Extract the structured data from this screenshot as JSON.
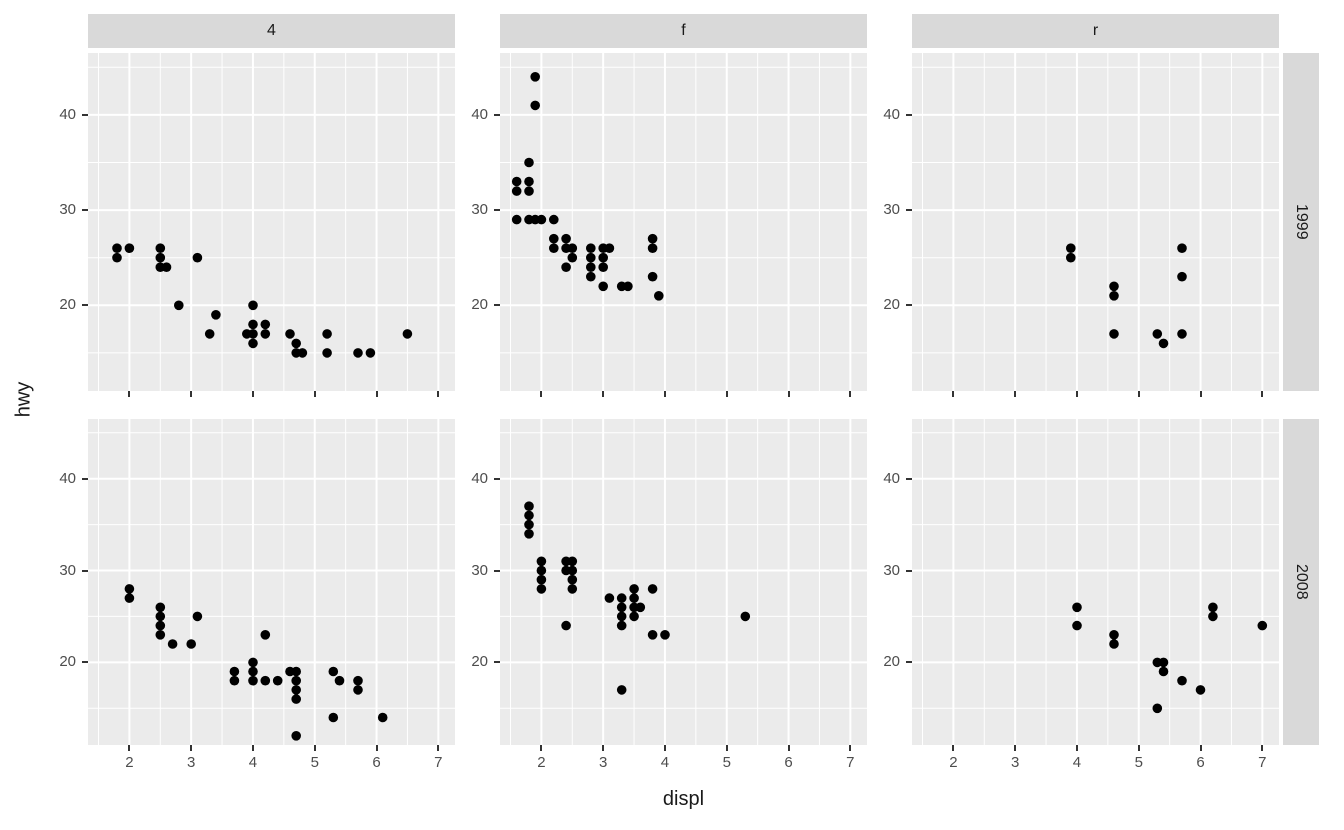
{
  "chart_data": {
    "type": "scatter",
    "title": "",
    "xlabel": "displ",
    "ylabel": "hwy",
    "x_domain": [
      1.33,
      7.27
    ],
    "y_domain": [
      11,
      46.5
    ],
    "x_ticks": [
      2,
      3,
      4,
      5,
      6,
      7
    ],
    "y_ticks": [
      20,
      30,
      40
    ],
    "x_minor": [
      1.5,
      2.5,
      3.5,
      4.5,
      5.5,
      6.5
    ],
    "y_minor": [
      15,
      25,
      35,
      45
    ],
    "grid": true,
    "legend": "none",
    "facet_cols": [
      "4",
      "f",
      "r"
    ],
    "facet_rows": [
      "1999",
      "2008"
    ],
    "colors": {
      "panel_bg": "#EBEBEB",
      "strip_bg": "#D9D9D9",
      "grid": "#FFFFFF",
      "point": "#000000",
      "tick_text": "#4D4D4D",
      "tick_mark": "#333333"
    },
    "panels": [
      {
        "col": "4",
        "row": "1999",
        "points": [
          [
            1.8,
            26
          ],
          [
            1.8,
            25
          ],
          [
            2.0,
            26
          ],
          [
            2.5,
            26
          ],
          [
            2.5,
            25
          ],
          [
            2.5,
            24
          ],
          [
            2.6,
            24
          ],
          [
            2.8,
            20
          ],
          [
            3.1,
            25
          ],
          [
            3.3,
            17
          ],
          [
            3.4,
            19
          ],
          [
            3.9,
            17
          ],
          [
            4.0,
            20
          ],
          [
            4.0,
            18
          ],
          [
            4.0,
            17
          ],
          [
            4.0,
            16
          ],
          [
            4.2,
            18
          ],
          [
            4.2,
            17
          ],
          [
            4.6,
            17
          ],
          [
            4.7,
            16
          ],
          [
            4.7,
            15
          ],
          [
            4.8,
            15
          ],
          [
            5.2,
            17
          ],
          [
            5.2,
            15
          ],
          [
            5.7,
            15
          ],
          [
            5.9,
            15
          ],
          [
            6.5,
            17
          ]
        ]
      },
      {
        "col": "f",
        "row": "1999",
        "points": [
          [
            1.9,
            44
          ],
          [
            1.9,
            41
          ],
          [
            1.8,
            35
          ],
          [
            1.6,
            33
          ],
          [
            1.8,
            33
          ],
          [
            1.6,
            32
          ],
          [
            1.8,
            32
          ],
          [
            1.6,
            29
          ],
          [
            1.8,
            29
          ],
          [
            1.9,
            29
          ],
          [
            2.0,
            29
          ],
          [
            2.2,
            29
          ],
          [
            2.2,
            27
          ],
          [
            2.2,
            26
          ],
          [
            2.4,
            27
          ],
          [
            2.4,
            26
          ],
          [
            2.4,
            24
          ],
          [
            2.5,
            26
          ],
          [
            2.5,
            25
          ],
          [
            2.8,
            26
          ],
          [
            2.8,
            25
          ],
          [
            2.8,
            24
          ],
          [
            2.8,
            23
          ],
          [
            3.0,
            26
          ],
          [
            3.0,
            25
          ],
          [
            3.0,
            24
          ],
          [
            3.0,
            22
          ],
          [
            3.1,
            26
          ],
          [
            3.3,
            22
          ],
          [
            3.4,
            22
          ],
          [
            3.8,
            27
          ],
          [
            3.8,
            26
          ],
          [
            3.8,
            23
          ],
          [
            3.9,
            21
          ]
        ]
      },
      {
        "col": "r",
        "row": "1999",
        "points": [
          [
            3.9,
            26
          ],
          [
            3.9,
            25
          ],
          [
            4.6,
            22
          ],
          [
            4.6,
            21
          ],
          [
            4.6,
            17
          ],
          [
            5.3,
            17
          ],
          [
            5.4,
            16
          ],
          [
            5.7,
            26
          ],
          [
            5.7,
            23
          ],
          [
            5.7,
            17
          ]
        ]
      },
      {
        "col": "4",
        "row": "2008",
        "points": [
          [
            2.0,
            28
          ],
          [
            2.0,
            27
          ],
          [
            2.5,
            26
          ],
          [
            2.5,
            25
          ],
          [
            2.5,
            24
          ],
          [
            2.5,
            23
          ],
          [
            2.7,
            22
          ],
          [
            3.0,
            22
          ],
          [
            3.1,
            25
          ],
          [
            3.7,
            19
          ],
          [
            3.7,
            18
          ],
          [
            4.0,
            20
          ],
          [
            4.0,
            19
          ],
          [
            4.0,
            18
          ],
          [
            4.2,
            23
          ],
          [
            4.2,
            18
          ],
          [
            4.4,
            18
          ],
          [
            4.6,
            19
          ],
          [
            4.7,
            19
          ],
          [
            4.7,
            18
          ],
          [
            4.7,
            17
          ],
          [
            4.7,
            16
          ],
          [
            4.7,
            12
          ],
          [
            5.3,
            19
          ],
          [
            5.3,
            14
          ],
          [
            5.4,
            18
          ],
          [
            5.7,
            18
          ],
          [
            5.7,
            17
          ],
          [
            6.1,
            14
          ]
        ]
      },
      {
        "col": "f",
        "row": "2008",
        "points": [
          [
            1.8,
            37
          ],
          [
            1.8,
            36
          ],
          [
            1.8,
            35
          ],
          [
            1.8,
            34
          ],
          [
            2.0,
            31
          ],
          [
            2.0,
            30
          ],
          [
            2.0,
            29
          ],
          [
            2.0,
            28
          ],
          [
            2.4,
            31
          ],
          [
            2.4,
            30
          ],
          [
            2.5,
            31
          ],
          [
            2.5,
            30
          ],
          [
            2.5,
            29
          ],
          [
            2.5,
            28
          ],
          [
            2.4,
            24
          ],
          [
            3.1,
            27
          ],
          [
            3.3,
            27
          ],
          [
            3.3,
            26
          ],
          [
            3.3,
            25
          ],
          [
            3.3,
            24
          ],
          [
            3.3,
            17
          ],
          [
            3.5,
            28
          ],
          [
            3.5,
            27
          ],
          [
            3.5,
            26
          ],
          [
            3.5,
            25
          ],
          [
            3.6,
            26
          ],
          [
            3.8,
            28
          ],
          [
            3.8,
            23
          ],
          [
            4.0,
            23
          ],
          [
            5.3,
            25
          ]
        ]
      },
      {
        "col": "r",
        "row": "2008",
        "points": [
          [
            4.0,
            26
          ],
          [
            4.0,
            24
          ],
          [
            4.6,
            23
          ],
          [
            4.6,
            22
          ],
          [
            5.3,
            20
          ],
          [
            5.4,
            20
          ],
          [
            5.4,
            19
          ],
          [
            5.3,
            15
          ],
          [
            5.7,
            18
          ],
          [
            6.0,
            17
          ],
          [
            6.2,
            26
          ],
          [
            6.2,
            25
          ],
          [
            7.0,
            24
          ]
        ]
      }
    ]
  }
}
